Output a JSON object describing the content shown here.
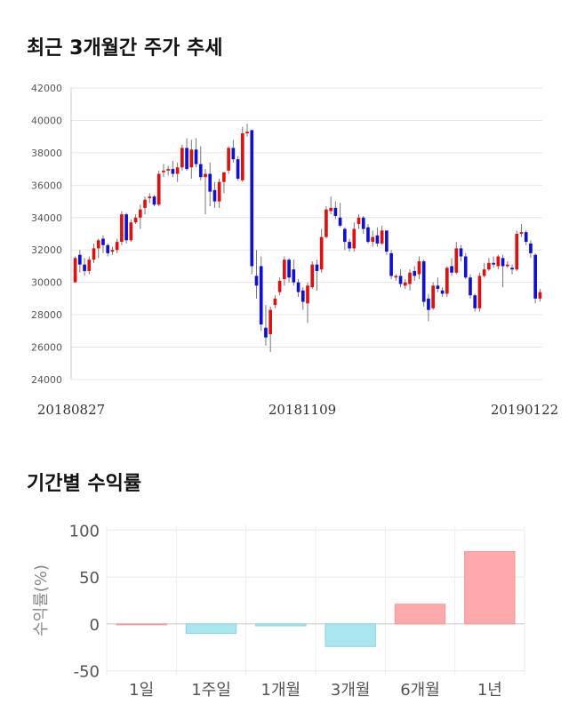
{
  "sections": {
    "price_title": "최근 3개월간 주가 추세",
    "return_title": "기간별 수익률"
  },
  "chart_data": [
    {
      "type": "candlestick",
      "title": "최근 3개월간 주가 추세",
      "ylim": [
        24000,
        42000
      ],
      "yticks": [
        24000,
        26000,
        28000,
        30000,
        32000,
        34000,
        36000,
        38000,
        40000,
        42000
      ],
      "date_labels": [
        "20180827",
        "20181109",
        "20190122"
      ],
      "up_color": "#dd1111",
      "down_color": "#1111cc",
      "candles": [
        [
          30000,
          31500,
          31600,
          30100
        ],
        [
          31700,
          31100,
          32000,
          30600
        ],
        [
          31100,
          30700,
          31500,
          30400
        ],
        [
          30700,
          31400,
          31600,
          30500
        ],
        [
          31400,
          32100,
          32400,
          31200
        ],
        [
          32100,
          32600,
          32700,
          31500
        ],
        [
          32700,
          32300,
          32900,
          31800
        ],
        [
          32300,
          31800,
          32400,
          31600
        ],
        [
          31900,
          32000,
          32200,
          31700
        ],
        [
          32000,
          32500,
          32700,
          31800
        ],
        [
          32500,
          34200,
          34400,
          32300
        ],
        [
          34200,
          32600,
          34300,
          32400
        ],
        [
          32600,
          33700,
          33900,
          32500
        ],
        [
          33700,
          34000,
          34200,
          33600
        ],
        [
          34000,
          34500,
          34800,
          33300
        ],
        [
          34600,
          35100,
          35300,
          34200
        ],
        [
          35200,
          35300,
          35500,
          34900
        ],
        [
          35300,
          34800,
          35400,
          34700
        ],
        [
          34800,
          36700,
          36900,
          34700
        ],
        [
          36800,
          36900,
          37300,
          36500
        ],
        [
          36900,
          37000,
          37200,
          36600
        ],
        [
          37000,
          36700,
          37500,
          36500
        ],
        [
          36700,
          37100,
          37400,
          36200
        ],
        [
          37100,
          38300,
          38500,
          36900
        ],
        [
          38300,
          37000,
          38900,
          36900
        ],
        [
          37100,
          38200,
          38800,
          36400
        ],
        [
          38200,
          37300,
          38900,
          37100
        ],
        [
          37300,
          36500,
          38400,
          36300
        ],
        [
          36500,
          36700,
          37000,
          34200
        ],
        [
          36700,
          35600,
          37400,
          34700
        ],
        [
          35700,
          35000,
          36200,
          34600
        ],
        [
          35000,
          36200,
          36400,
          34600
        ],
        [
          36200,
          36800,
          36800,
          35500
        ],
        [
          36900,
          38300,
          38400,
          36700
        ],
        [
          38300,
          37600,
          38800,
          37400
        ],
        [
          37600,
          36400,
          37800,
          36300
        ],
        [
          36300,
          39200,
          39600,
          36200
        ],
        [
          39200,
          39300,
          39800,
          39000
        ],
        [
          39400,
          31000,
          39400,
          30500
        ],
        [
          30400,
          29800,
          32000,
          29000
        ],
        [
          31000,
          27400,
          31600,
          27000
        ],
        [
          27200,
          26600,
          28600,
          26100
        ],
        [
          26800,
          28300,
          28500,
          25700
        ],
        [
          28600,
          29000,
          29200,
          28400
        ],
        [
          29400,
          30100,
          30300,
          29200
        ],
        [
          30200,
          31400,
          31600,
          29800
        ],
        [
          31400,
          30300,
          31500,
          30000
        ],
        [
          30800,
          30000,
          31400,
          29800
        ],
        [
          30000,
          29400,
          30200,
          29100
        ],
        [
          29500,
          28800,
          29700,
          28300
        ],
        [
          28700,
          29800,
          30000,
          27500
        ],
        [
          29700,
          31100,
          31300,
          29600
        ],
        [
          31100,
          30700,
          31400,
          29500
        ],
        [
          30800,
          32800,
          33300,
          30600
        ],
        [
          32800,
          34500,
          34700,
          32700
        ],
        [
          34400,
          34600,
          35300,
          34200
        ],
        [
          34600,
          34100,
          35000,
          33900
        ],
        [
          34000,
          33500,
          34900,
          33400
        ],
        [
          33300,
          32500,
          33400,
          32000
        ],
        [
          32500,
          32100,
          32700,
          31900
        ],
        [
          32100,
          33300,
          33700,
          31900
        ],
        [
          33600,
          34000,
          34200,
          33300
        ],
        [
          34000,
          33300,
          34100,
          33000
        ],
        [
          33400,
          32500,
          33600,
          32400
        ],
        [
          32500,
          32800,
          33200,
          32200
        ],
        [
          32900,
          32400,
          33400,
          32200
        ],
        [
          32400,
          33200,
          33500,
          32300
        ],
        [
          33200,
          31900,
          33200,
          31700
        ],
        [
          31800,
          30400,
          32000,
          30200
        ],
        [
          30300,
          30400,
          30500,
          30100
        ],
        [
          30400,
          29900,
          30800,
          29700
        ],
        [
          29800,
          30000,
          30200,
          29600
        ],
        [
          29900,
          30600,
          30800,
          29500
        ],
        [
          30700,
          30400,
          31000,
          30100
        ],
        [
          30500,
          31300,
          31600,
          30200
        ],
        [
          31300,
          28800,
          31400,
          28500
        ],
        [
          29000,
          28300,
          29300,
          27600
        ],
        [
          28400,
          29800,
          30000,
          28300
        ],
        [
          29800,
          29600,
          30300,
          29400
        ],
        [
          29500,
          29300,
          29700,
          29100
        ],
        [
          29300,
          30900,
          31000,
          29100
        ],
        [
          31000,
          30600,
          31500,
          30400
        ],
        [
          30600,
          32100,
          32500,
          30500
        ],
        [
          32100,
          31600,
          32300,
          31300
        ],
        [
          31600,
          30300,
          31800,
          30200
        ],
        [
          30300,
          29200,
          30500,
          29000
        ],
        [
          29200,
          28400,
          29300,
          28200
        ],
        [
          28400,
          30400,
          30600,
          28200
        ],
        [
          30400,
          30800,
          31200,
          30300
        ],
        [
          30800,
          31200,
          31500,
          30700
        ],
        [
          31200,
          31100,
          31600,
          30900
        ],
        [
          31000,
          31600,
          31700,
          30800
        ],
        [
          31500,
          31000,
          31700,
          29700
        ],
        [
          31000,
          31100,
          31300,
          30900
        ],
        [
          30900,
          30800,
          31100,
          30500
        ],
        [
          30800,
          33000,
          33200,
          30700
        ],
        [
          33000,
          33100,
          33600,
          32800
        ],
        [
          33100,
          32500,
          33200,
          32300
        ],
        [
          32400,
          31800,
          32600,
          31500
        ],
        [
          31700,
          29000,
          31800,
          28700
        ],
        [
          29000,
          29400,
          29600,
          28800
        ]
      ]
    },
    {
      "type": "bar",
      "title": "기간별 수익률",
      "ylabel": "수익률(%)",
      "categories": [
        "1일",
        "1주일",
        "1개월",
        "3개월",
        "6개월",
        "1년"
      ],
      "values": [
        0,
        -10,
        -2,
        -24,
        21,
        77
      ],
      "ylim": [
        -55,
        105
      ],
      "yticks": [
        -50,
        0,
        50,
        100
      ],
      "positive_color": "#ffaaaa",
      "negative_color": "#aae6f0"
    }
  ]
}
